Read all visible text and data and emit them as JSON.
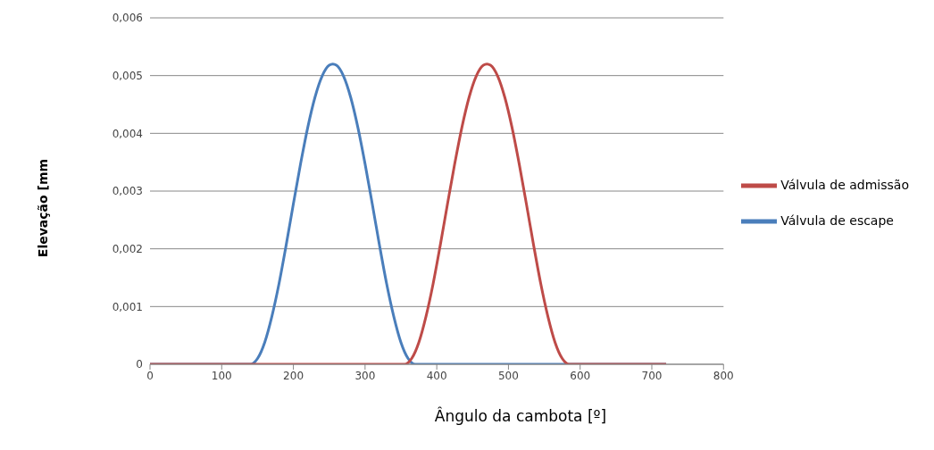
{
  "chart_data": {
    "type": "line",
    "xlabel": "Ângulo da cambota [º]",
    "ylabel": "Elevação [mm",
    "xlim": [
      0,
      800
    ],
    "xticks": [
      0,
      100,
      200,
      300,
      400,
      500,
      600,
      700,
      800
    ],
    "ylim": [
      0,
      0.006
    ],
    "yticks": [
      {
        "value": 0,
        "label": "0"
      },
      {
        "value": 0.001,
        "label": "0,001"
      },
      {
        "value": 0.002,
        "label": "0,002"
      },
      {
        "value": 0.003,
        "label": "0,003"
      },
      {
        "value": 0.004,
        "label": "0,004"
      },
      {
        "value": 0.005,
        "label": "0,005"
      },
      {
        "value": 0.006,
        "label": "0,006"
      }
    ],
    "grid": "y",
    "legend": "right",
    "marker": "none",
    "line_style": "solid",
    "series": [
      {
        "name": "Válvula de escape",
        "color": "#4a7ebb",
        "x": [
          0,
          140,
          150,
          160,
          170,
          180,
          190,
          200,
          210,
          220,
          230,
          240,
          250,
          255,
          260,
          270,
          280,
          290,
          300,
          310,
          320,
          330,
          340,
          350,
          360,
          370,
          720
        ],
        "values": [
          0,
          0,
          0.0001,
          0.00038,
          0.00083,
          0.0014,
          0.00207,
          0.00278,
          0.00347,
          0.0041,
          0.00462,
          0.00499,
          0.00518,
          0.0052,
          0.00518,
          0.00499,
          0.00462,
          0.0041,
          0.00347,
          0.00278,
          0.00207,
          0.0014,
          0.00083,
          0.00038,
          0.0001,
          0,
          0
        ]
      },
      {
        "name": "Válvula de admissão",
        "color": "#be4b48",
        "x": [
          0,
          355,
          365,
          375,
          385,
          395,
          405,
          415,
          425,
          435,
          445,
          455,
          465,
          470,
          475,
          485,
          495,
          505,
          515,
          525,
          535,
          545,
          555,
          565,
          575,
          585,
          720
        ],
        "values": [
          0,
          0,
          0.0001,
          0.00038,
          0.00083,
          0.0014,
          0.00207,
          0.00278,
          0.00347,
          0.0041,
          0.00462,
          0.00499,
          0.00518,
          0.0052,
          0.00518,
          0.00499,
          0.00462,
          0.0041,
          0.00347,
          0.00278,
          0.00207,
          0.0014,
          0.00083,
          0.00038,
          0.0001,
          0,
          0
        ]
      }
    ]
  }
}
